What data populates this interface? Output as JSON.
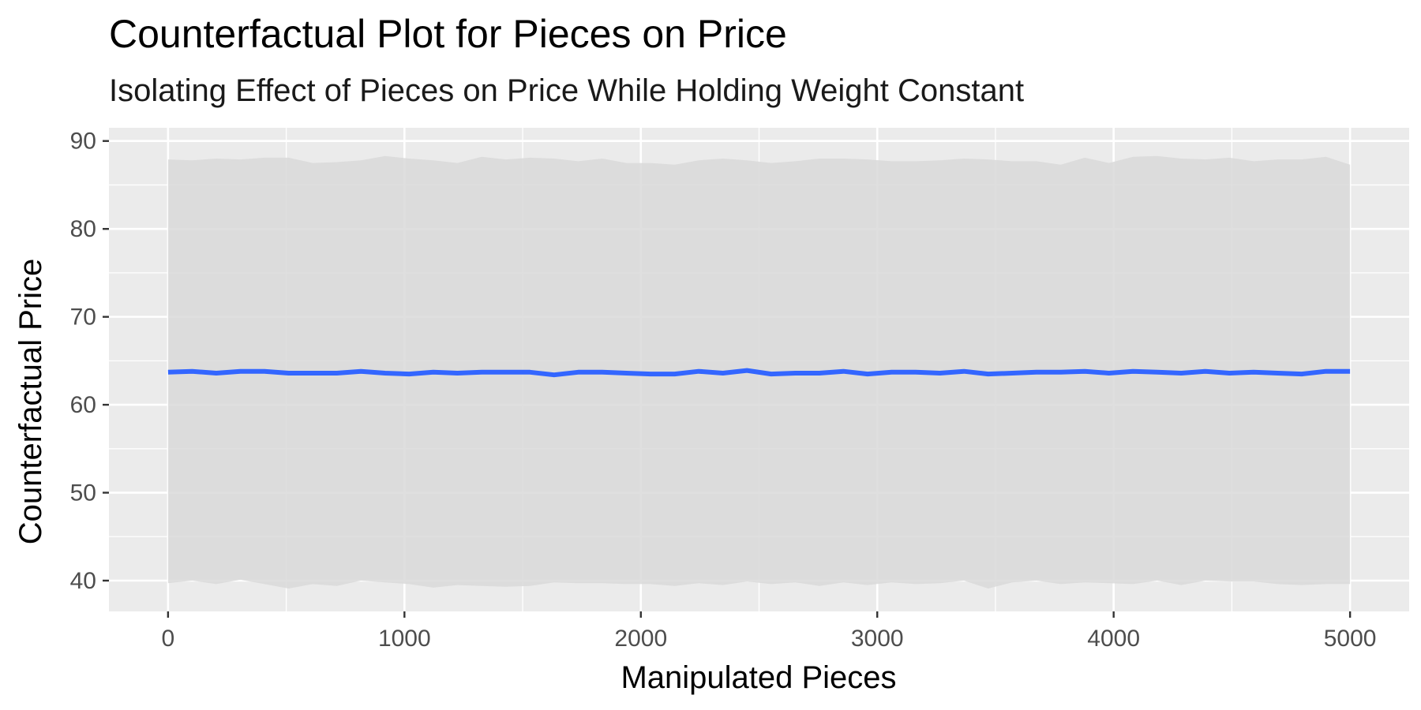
{
  "chart_data": {
    "type": "line",
    "title": "Counterfactual Plot for Pieces on Price",
    "subtitle": "Isolating Effect of Pieces on Price While Holding Weight Constant",
    "xlabel": "Manipulated Pieces",
    "ylabel": "Counterfactual Price",
    "xlim": [
      -250,
      5250
    ],
    "ylim": [
      36.5,
      91.5
    ],
    "x_ticks": [
      0,
      1000,
      2000,
      3000,
      4000,
      5000
    ],
    "x_minor_ticks": [
      500,
      1500,
      2500,
      3500,
      4500
    ],
    "y_ticks": [
      40,
      50,
      60,
      70,
      80,
      90
    ],
    "y_minor_ticks": [
      45,
      55,
      65,
      75,
      85
    ],
    "grid": true,
    "legend": "none",
    "series": [
      {
        "x": [
          0,
          102,
          204,
          306,
          408,
          510,
          612,
          714,
          816,
          918,
          1020,
          1122,
          1224,
          1327,
          1429,
          1531,
          1633,
          1735,
          1837,
          1939,
          2041,
          2143,
          2245,
          2347,
          2449,
          2551,
          2653,
          2755,
          2857,
          2959,
          3061,
          3163,
          3265,
          3367,
          3469,
          3571,
          3673,
          3776,
          3878,
          3980,
          4082,
          4184,
          4286,
          4388,
          4490,
          4592,
          4694,
          4796,
          4898,
          5000
        ],
        "y": [
          63.7,
          63.8,
          63.6,
          63.8,
          63.8,
          63.6,
          63.6,
          63.6,
          63.8,
          63.6,
          63.5,
          63.7,
          63.6,
          63.7,
          63.7,
          63.7,
          63.4,
          63.7,
          63.7,
          63.6,
          63.5,
          63.5,
          63.8,
          63.6,
          63.9,
          63.5,
          63.6,
          63.6,
          63.8,
          63.5,
          63.7,
          63.7,
          63.6,
          63.8,
          63.5,
          63.6,
          63.7,
          63.7,
          63.8,
          63.6,
          63.8,
          63.7,
          63.6,
          63.8,
          63.6,
          63.7,
          63.6,
          63.5,
          63.8,
          63.8
        ],
        "lower": [
          39.7,
          40.0,
          39.6,
          40.1,
          39.6,
          39.1,
          39.6,
          39.4,
          40.0,
          39.8,
          39.6,
          39.2,
          39.5,
          39.4,
          39.3,
          39.4,
          39.8,
          39.7,
          39.7,
          39.6,
          39.6,
          39.4,
          39.7,
          39.5,
          39.9,
          39.6,
          39.8,
          39.4,
          39.8,
          39.5,
          39.8,
          39.6,
          39.7,
          40.0,
          39.1,
          39.8,
          40.0,
          39.6,
          39.8,
          39.7,
          39.6,
          40.0,
          39.5,
          40.0,
          39.9,
          39.9,
          39.6,
          39.5,
          39.6,
          39.6
        ],
        "upper": [
          87.9,
          87.8,
          88.0,
          87.9,
          88.1,
          88.1,
          87.5,
          87.6,
          87.8,
          88.3,
          88.0,
          87.8,
          87.5,
          88.2,
          87.9,
          88.1,
          88.0,
          87.7,
          88.0,
          87.5,
          87.5,
          87.3,
          87.8,
          88.0,
          87.8,
          87.5,
          87.7,
          88.0,
          88.0,
          87.9,
          87.7,
          87.7,
          87.8,
          88.0,
          87.9,
          87.7,
          87.7,
          87.3,
          88.1,
          87.5,
          88.2,
          88.3,
          88.0,
          87.9,
          88.1,
          87.7,
          87.9,
          87.9,
          88.2,
          87.3
        ]
      }
    ],
    "colors": {
      "panel_bg": "#ebebeb",
      "grid_major": "#ffffff",
      "ribbon": "#d9d9d9",
      "line": "#3366ff",
      "tick_text": "#4d4d4d",
      "tick_mark": "#333333"
    }
  }
}
